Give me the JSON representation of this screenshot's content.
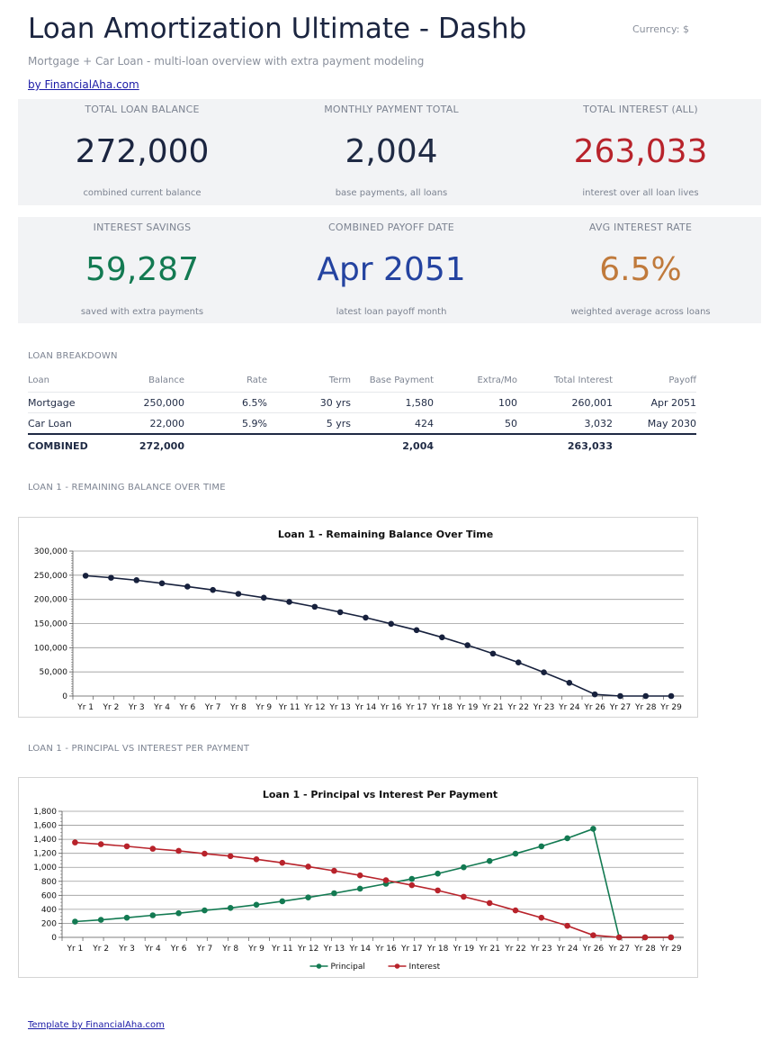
{
  "header": {
    "title": "Loan Amortization Ultimate - Dashb",
    "currency": "Currency: $",
    "subtitle": "Mortgage + Car Loan - multi-loan overview with extra payment modeling",
    "byline": "by FinancialAha.com"
  },
  "kpis": [
    {
      "label": "TOTAL LOAN BALANCE",
      "value": "272,000",
      "sub": "combined current balance",
      "color": "#1b2540"
    },
    {
      "label": "MONTHLY PAYMENT TOTAL",
      "value": "2,004",
      "sub": "base payments, all loans",
      "color": "#1f2a44"
    },
    {
      "label": "TOTAL INTEREST (ALL)",
      "value": "263,033",
      "sub": "interest over all loan lives",
      "color": "#b8232b"
    },
    {
      "label": "INTEREST SAVINGS",
      "value": "59,287",
      "sub": "saved with extra payments",
      "color": "#137a52"
    },
    {
      "label": "COMBINED PAYOFF DATE",
      "value": "Apr 2051",
      "sub": "latest loan payoff month",
      "color": "#2443a0"
    },
    {
      "label": "AVG INTEREST RATE",
      "value": "6.5%",
      "sub": "weighted average across loans",
      "color": "#c07a3c"
    }
  ],
  "breakdown": {
    "section_label": "LOAN BREAKDOWN",
    "columns": [
      "Loan",
      "Balance",
      "Rate",
      "Term",
      "Base Payment",
      "Extra/Mo",
      "Total Interest",
      "Payoff"
    ],
    "rows": [
      [
        "Mortgage",
        "250,000",
        "6.5%",
        "30 yrs",
        "1,580",
        "100",
        "260,001",
        "Apr 2051"
      ],
      [
        "Car Loan",
        "22,000",
        "5.9%",
        "5 yrs",
        "424",
        "50",
        "3,032",
        "May 2030"
      ]
    ],
    "total": [
      "COMBINED",
      "272,000",
      "",
      "",
      "2,004",
      "",
      "263,033",
      ""
    ]
  },
  "sections": {
    "balance_label": "LOAN 1 - REMAINING BALANCE OVER TIME",
    "pi_label": "LOAN 1 - PRINCIPAL VS INTEREST PER PAYMENT"
  },
  "footer": "Template by FinancialAha.com",
  "chart_data": [
    {
      "type": "line",
      "title": "Loan 1 - Remaining Balance Over Time",
      "xlabel": "",
      "ylabel": "",
      "ylim": [
        0,
        300000
      ],
      "yticks": [
        "0",
        "50,000",
        "100,000",
        "150,000",
        "200,000",
        "250,000",
        "300,000"
      ],
      "categories": [
        "Yr 1",
        "Yr 2",
        "Yr 3",
        "Yr 4",
        "Yr 6",
        "Yr 7",
        "Yr 8",
        "Yr 9",
        "Yr 11",
        "Yr 12",
        "Yr 13",
        "Yr 14",
        "Yr 16",
        "Yr 17",
        "Yr 18",
        "Yr 19",
        "Yr 21",
        "Yr 22",
        "Yr 23",
        "Yr 24",
        "Yr 26",
        "Yr 27",
        "Yr 28",
        "Yr 29"
      ],
      "series": [
        {
          "color": "#17213d",
          "values": [
            249000,
            244800,
            239700,
            233200,
            226500,
            219500,
            211500,
            203500,
            194800,
            184700,
            173500,
            162300,
            149400,
            136400,
            121500,
            105200,
            87800,
            69500,
            49000,
            27400,
            3500,
            0,
            0,
            0
          ]
        }
      ],
      "grid": true,
      "legend": "none"
    },
    {
      "type": "line",
      "title": "Loan 1 - Principal vs Interest Per Payment",
      "xlabel": "",
      "ylabel": "",
      "ylim": [
        0,
        1800
      ],
      "yticks": [
        "0",
        "200",
        "400",
        "600",
        "800",
        "1,000",
        "1,200",
        "1,400",
        "1,600",
        "1,800"
      ],
      "categories": [
        "Yr 1",
        "Yr 2",
        "Yr 3",
        "Yr 4",
        "Yr 6",
        "Yr 7",
        "Yr 8",
        "Yr 9",
        "Yr 11",
        "Yr 12",
        "Yr 13",
        "Yr 14",
        "Yr 16",
        "Yr 17",
        "Yr 18",
        "Yr 19",
        "Yr 21",
        "Yr 22",
        "Yr 23",
        "Yr 24",
        "Yr 26",
        "Yr 27",
        "Yr 28",
        "Yr 29"
      ],
      "series": [
        {
          "name": "Principal",
          "color": "#137a52",
          "values": [
            225,
            250,
            280,
            315,
            345,
            385,
            420,
            465,
            515,
            570,
            630,
            695,
            765,
            835,
            910,
            1000,
            1090,
            1195,
            1300,
            1415,
            1550,
            0,
            0,
            0
          ]
        },
        {
          "name": "Interest",
          "color": "#b8232b",
          "values": [
            1355,
            1330,
            1300,
            1265,
            1235,
            1195,
            1160,
            1115,
            1065,
            1010,
            950,
            885,
            815,
            745,
            670,
            580,
            490,
            385,
            280,
            165,
            30,
            0,
            0,
            0
          ]
        }
      ],
      "grid": true,
      "legend": "bottom"
    }
  ]
}
